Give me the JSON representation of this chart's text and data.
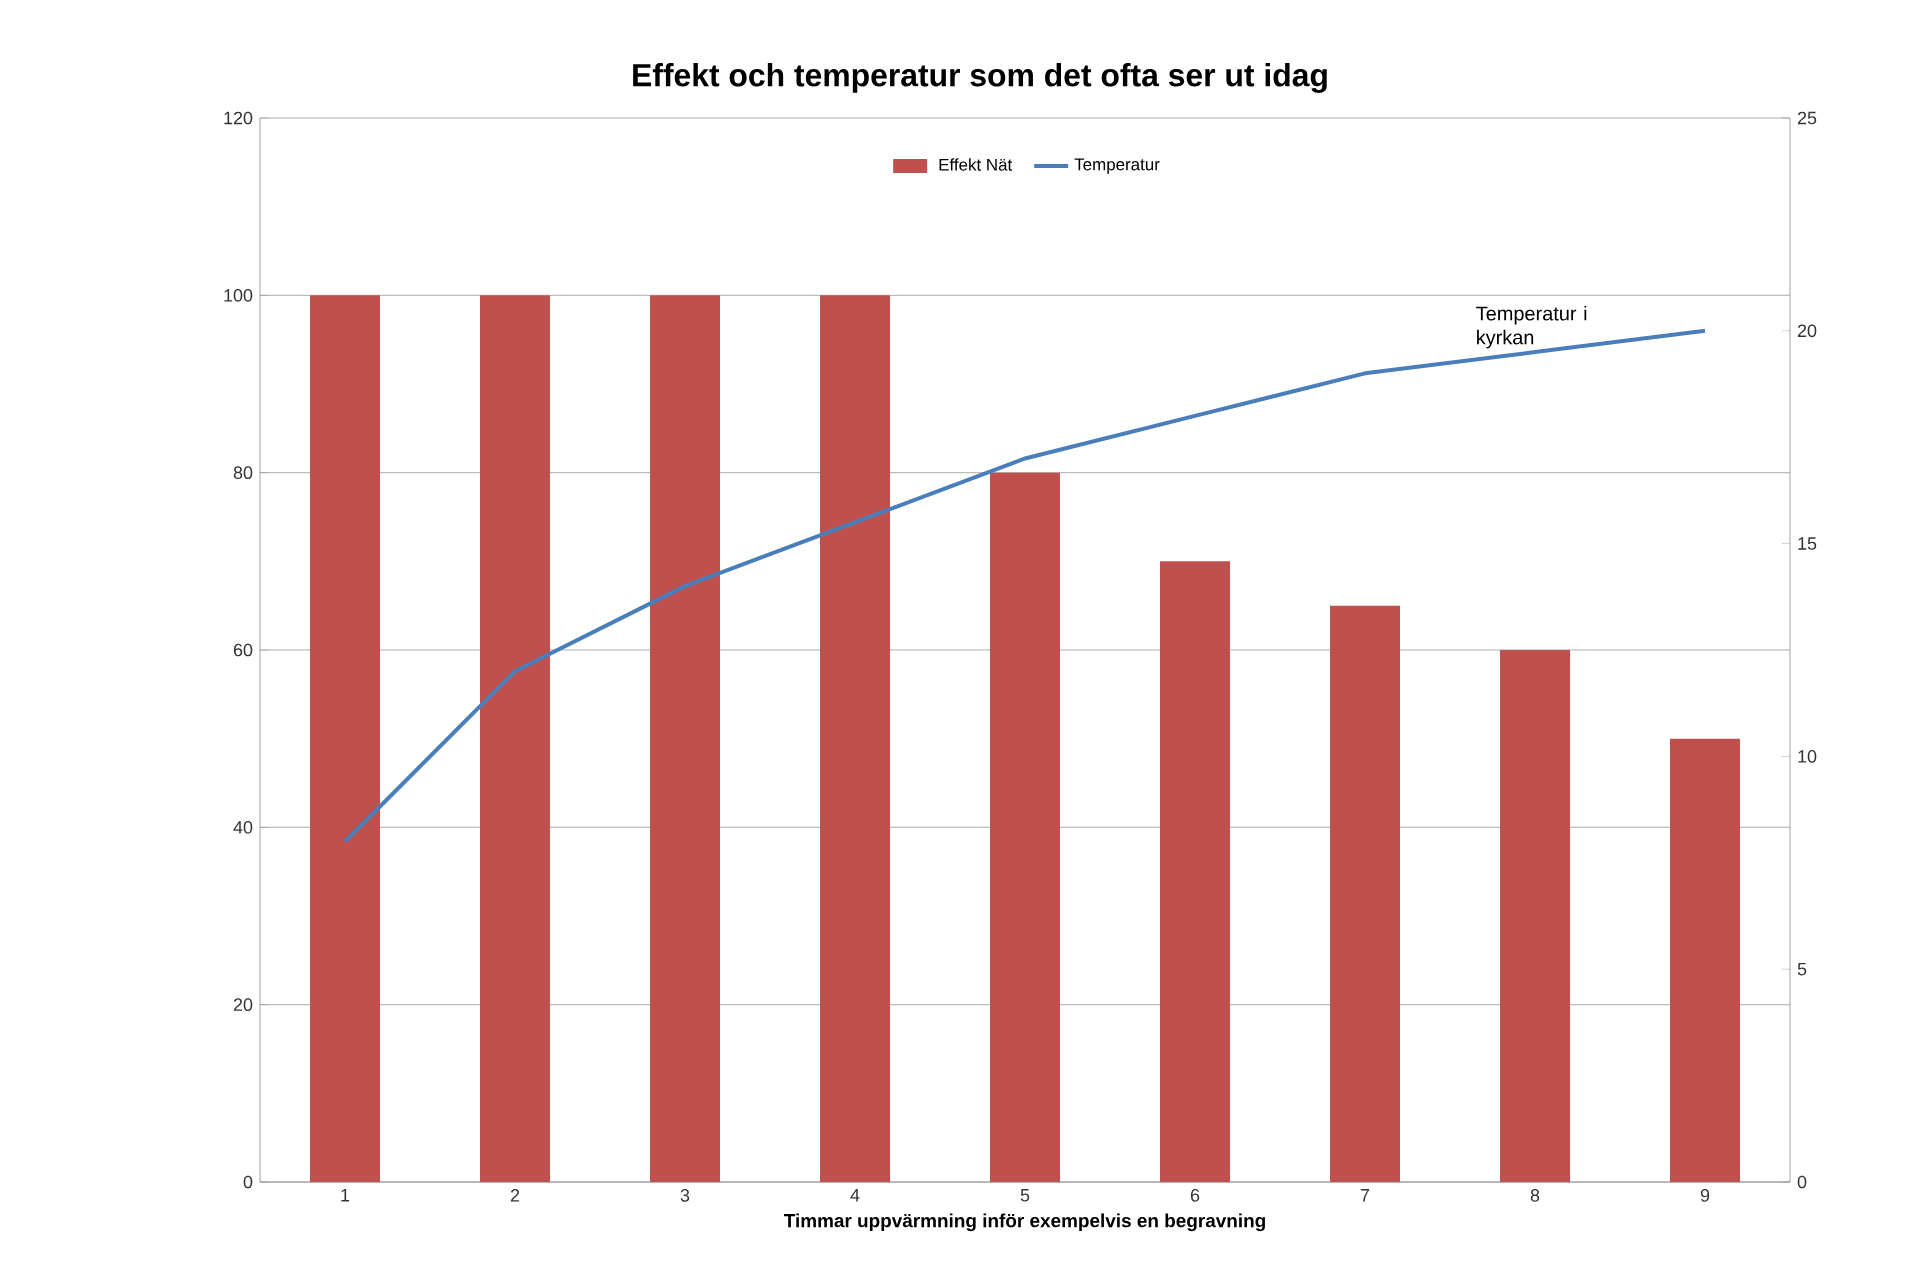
{
  "chart_data": {
    "type": "bar",
    "title": "Effekt och temperatur som det ofta ser ut idag",
    "xlabel": "Timmar uppvärmning inför exempelvis en begravning",
    "categories": [
      "1",
      "2",
      "3",
      "4",
      "5",
      "6",
      "7",
      "8",
      "9"
    ],
    "series": [
      {
        "name": "Effekt Nät",
        "color": "#c0504d",
        "values": [
          100,
          100,
          100,
          100,
          80,
          70,
          65,
          60,
          50
        ]
      },
      {
        "name": "Temperatur",
        "type": "line",
        "axis": "y2",
        "color": "#4a7ebb",
        "values": [
          8,
          12,
          14,
          15.5,
          17,
          18,
          19,
          19.5,
          20
        ]
      }
    ],
    "ylim": [
      0,
      120
    ],
    "yticks": [
      0,
      20,
      40,
      60,
      80,
      100,
      120
    ],
    "y2lim": [
      0,
      25
    ],
    "y2ticks": [
      0,
      5,
      10,
      15,
      20,
      25
    ],
    "grid": "y",
    "legend": "top",
    "marker": "none",
    "annotations": [
      "Temperatur i kyrkan"
    ]
  }
}
